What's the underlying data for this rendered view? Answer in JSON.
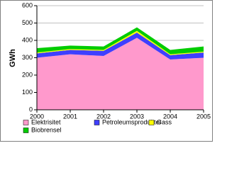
{
  "chart_data": {
    "type": "stacked_area",
    "y_label": "GWh",
    "x": [
      2000,
      2001,
      2002,
      2003,
      2004,
      2005
    ],
    "xlim": [
      2000,
      2005
    ],
    "xticks": [
      2000,
      2001,
      2002,
      2003,
      2004,
      2005
    ],
    "ylim": [
      0,
      600
    ],
    "yticks": [
      0,
      100,
      200,
      300,
      400,
      500,
      600
    ],
    "grid": true,
    "series": [
      {
        "name": "Elektrisitet",
        "color": "#ff99cc",
        "values": [
          300,
          320,
          310,
          415,
          290,
          300
        ]
      },
      {
        "name": "Petroleumsprodukter",
        "color": "#3f3fff",
        "values": [
          25,
          25,
          30,
          30,
          25,
          30
        ]
      },
      {
        "name": "Gass",
        "color": "#ffff00",
        "values": [
          5,
          5,
          5,
          10,
          5,
          5
        ]
      },
      {
        "name": "Biobrensel",
        "color": "#00cc00",
        "values": [
          25,
          20,
          20,
          20,
          25,
          30
        ]
      }
    ]
  }
}
